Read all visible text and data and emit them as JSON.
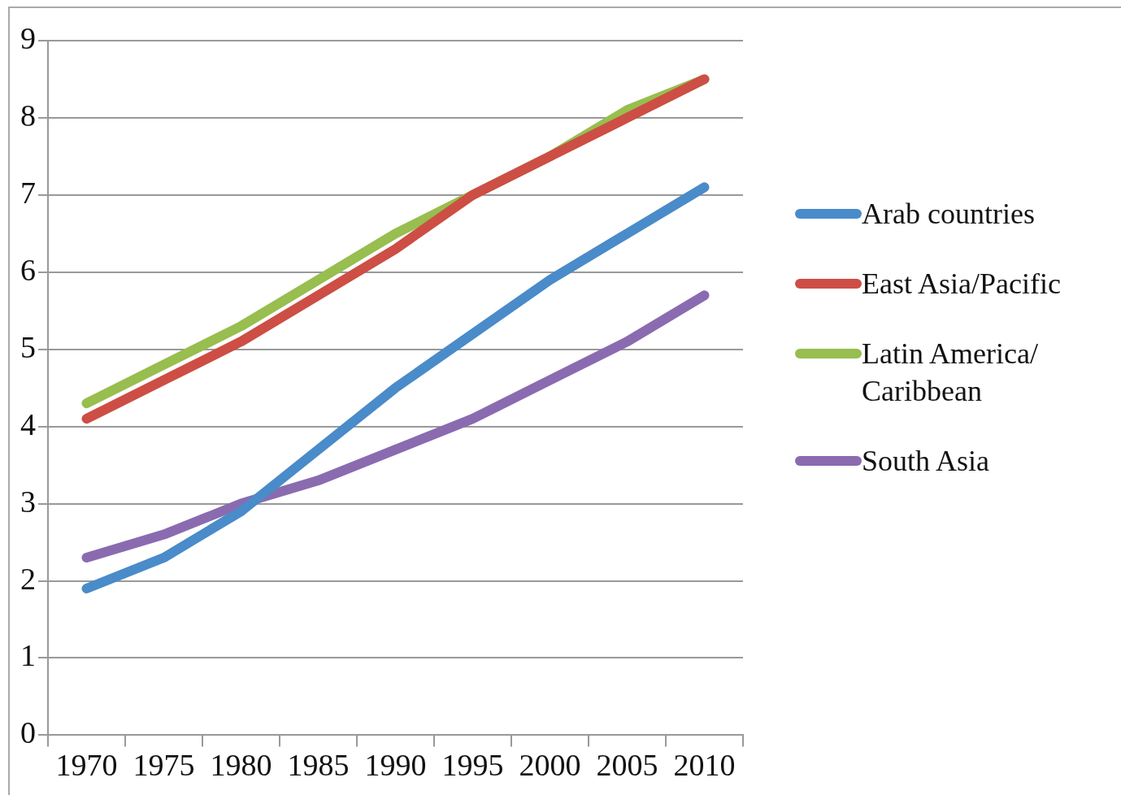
{
  "chart_data": {
    "type": "line",
    "categories": [
      "1970",
      "1975",
      "1980",
      "1985",
      "1990",
      "1995",
      "2000",
      "2005",
      "2010"
    ],
    "series": [
      {
        "name": "Arab countries",
        "color": "#4a8bc9",
        "values": [
          1.9,
          2.3,
          2.9,
          3.7,
          4.5,
          5.2,
          5.9,
          6.5,
          7.1
        ]
      },
      {
        "name": "East Asia/Pacific",
        "color": "#cd4e45",
        "values": [
          4.1,
          4.6,
          5.1,
          5.7,
          6.3,
          7.0,
          7.5,
          8.0,
          8.5
        ]
      },
      {
        "name": "Latin America/ Caribbean",
        "color": "#97be4f",
        "values": [
          4.3,
          4.8,
          5.3,
          5.9,
          6.5,
          7.0,
          7.5,
          8.1,
          8.5
        ]
      },
      {
        "name": "South Asia",
        "color": "#8a6bb0",
        "values": [
          2.3,
          2.6,
          3.0,
          3.3,
          3.7,
          4.1,
          4.6,
          5.1,
          5.7
        ]
      }
    ],
    "ylim": [
      0,
      9
    ],
    "yticks": [
      0,
      1,
      2,
      3,
      4,
      5,
      6,
      7,
      8,
      9
    ],
    "grid": "y",
    "legend": "right",
    "marker": "none",
    "line_style": "solid"
  }
}
